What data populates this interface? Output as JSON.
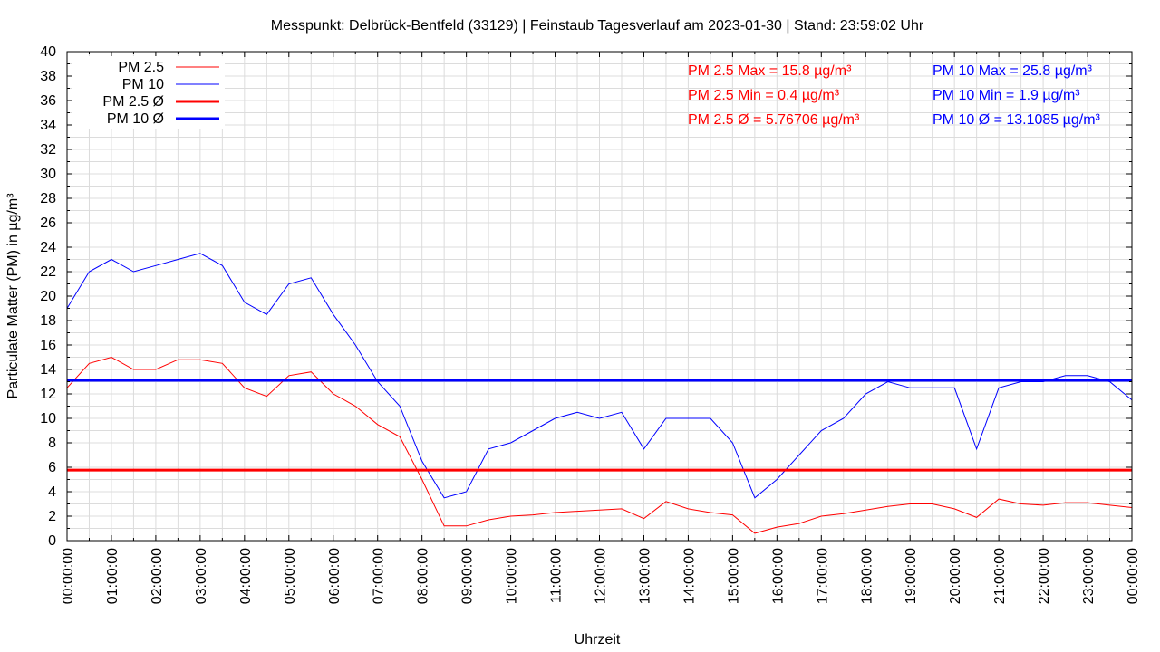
{
  "chart_data": {
    "type": "line",
    "title": "Messpunkt: Delbrück-Bentfeld (33129) | Feinstaub Tagesverlauf am 2023-01-30 | Stand: 23:59:02 Uhr",
    "xlabel": "Uhrzeit",
    "ylabel": "Particulate Matter (PM) in µg/m³",
    "ylim": [
      0,
      40
    ],
    "yticks": [
      "0",
      "2",
      "4",
      "6",
      "8",
      "10",
      "12",
      "14",
      "16",
      "18",
      "20",
      "22",
      "24",
      "26",
      "28",
      "30",
      "32",
      "34",
      "36",
      "38",
      "40"
    ],
    "xlim_hours": [
      0,
      24
    ],
    "xticks": [
      "00:00:00",
      "01:00:00",
      "02:00:00",
      "03:00:00",
      "04:00:00",
      "05:00:00",
      "06:00:00",
      "07:00:00",
      "08:00:00",
      "09:00:00",
      "10:00:00",
      "11:00:00",
      "12:00:00",
      "13:00:00",
      "14:00:00",
      "15:00:00",
      "16:00:00",
      "17:00:00",
      "18:00:00",
      "19:00:00",
      "20:00:00",
      "21:00:00",
      "22:00:00",
      "23:00:00",
      "00:00:00"
    ],
    "grid": true,
    "legend_position": "top-left",
    "x_hours": [
      0,
      0.5,
      1,
      1.5,
      2,
      2.5,
      3,
      3.5,
      4,
      4.5,
      5,
      5.5,
      6,
      6.5,
      7,
      7.5,
      8,
      8.5,
      9,
      9.5,
      10,
      10.5,
      11,
      11.5,
      12,
      12.5,
      13,
      13.5,
      14,
      14.5,
      15,
      15.5,
      16,
      16.5,
      17,
      17.5,
      18,
      18.5,
      19,
      19.5,
      20,
      20.5,
      21,
      21.5,
      22,
      22.5,
      23,
      23.5,
      24
    ],
    "series": [
      {
        "name": "PM 2.5",
        "color": "#ff0000",
        "values": [
          12.5,
          14.5,
          15,
          14,
          14,
          14.8,
          14.8,
          14.5,
          12.5,
          11.8,
          13.5,
          13.8,
          12,
          11,
          9.5,
          8.5,
          5,
          1.2,
          1.2,
          1.7,
          2,
          2.1,
          2.3,
          2.4,
          2.5,
          2.6,
          1.8,
          3.2,
          2.6,
          2.3,
          2.1,
          0.6,
          1.1,
          1.4,
          2,
          2.2,
          2.5,
          2.8,
          3,
          3,
          2.6,
          1.9,
          3.4,
          3,
          2.9,
          3.1,
          3.1,
          2.9,
          2.7
        ]
      },
      {
        "name": "PM 10",
        "color": "#0000ff",
        "values": [
          19,
          22,
          23,
          22,
          22.5,
          23,
          23.5,
          22.5,
          19.5,
          18.5,
          21,
          21.5,
          18.5,
          16,
          13,
          11,
          6.5,
          3.5,
          4,
          7.5,
          8,
          9,
          10,
          10.5,
          10,
          10.5,
          7.5,
          10,
          10,
          10,
          8,
          3.5,
          5,
          7,
          9,
          10,
          12,
          13,
          12.5,
          12.5,
          12.5,
          7.5,
          12.5,
          13,
          13,
          13.5,
          13.5,
          13,
          11.5
        ]
      }
    ],
    "averages": [
      {
        "name": "PM 2.5 Ø",
        "color": "#ff0000",
        "value": 5.76706
      },
      {
        "name": "PM 10 Ø",
        "color": "#0000ff",
        "value": 13.1085
      }
    ],
    "annotations": {
      "pm25": [
        "PM 2.5 Max = 15.8 µg/m³",
        "PM 2.5 Min = 0.4 µg/m³",
        "PM 2.5 Ø = 5.76706 µg/m³"
      ],
      "pm10": [
        "PM 10 Max = 25.8 µg/m³",
        "PM 10 Min = 1.9 µg/m³",
        "PM 10 Ø = 13.1085 µg/m³"
      ]
    }
  }
}
